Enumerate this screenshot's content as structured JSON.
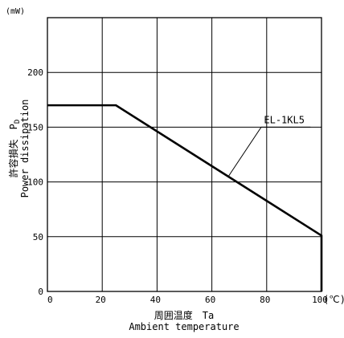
{
  "chart_data": {
    "type": "line",
    "y_unit": "(mW)",
    "x_unit": "(℃)",
    "xlabel_jp": "周囲温度　Ta",
    "xlabel_en": "Ambient temperature",
    "ylabel_jp": "許容損失　P",
    "ylabel_sub": "D",
    "ylabel_en": "Power dissipation",
    "xlim": [
      0,
      100
    ],
    "ylim": [
      0,
      250
    ],
    "x_ticks": [
      0,
      20,
      40,
      60,
      80,
      100
    ],
    "y_ticks": [
      0,
      50,
      100,
      150,
      200
    ],
    "grid": true,
    "series": [
      {
        "name": "EL-1KL5",
        "x": [
          0,
          25,
          100,
          100
        ],
        "y": [
          170,
          170,
          51,
          0
        ]
      }
    ]
  }
}
